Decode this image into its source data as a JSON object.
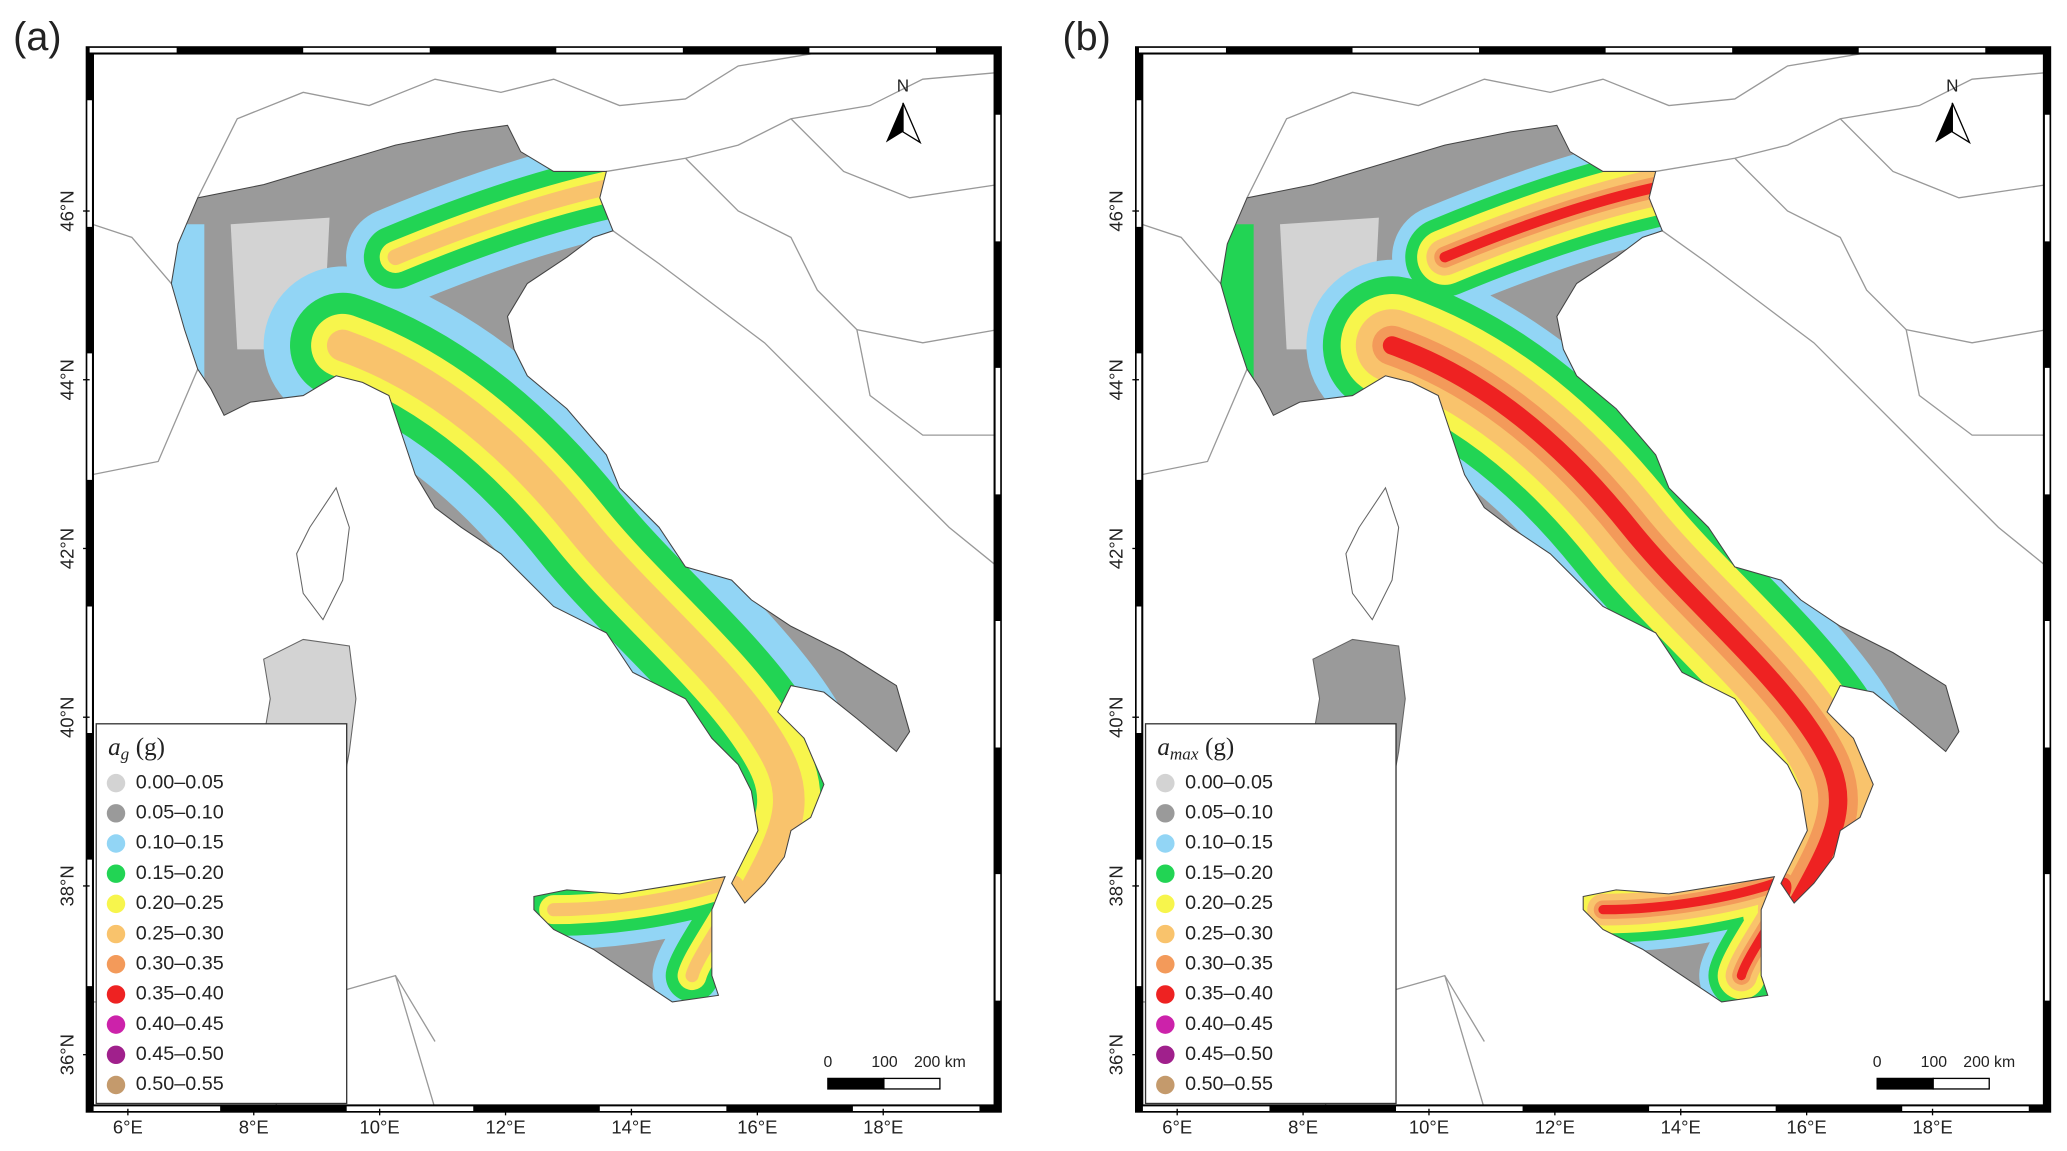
{
  "panels": [
    {
      "label": "(a)",
      "legend": {
        "title": {
          "symbol": "a",
          "subscript": "g",
          "unit": "(g)"
        },
        "items": [
          {
            "label": "0.00–0.05",
            "color": "#d3d3d3"
          },
          {
            "label": "0.05–0.10",
            "color": "#9a9a9a"
          },
          {
            "label": "0.10–0.15",
            "color": "#92d5f5"
          },
          {
            "label": "0.15–0.20",
            "color": "#22d454"
          },
          {
            "label": "0.20–0.25",
            "color": "#f7f54c"
          },
          {
            "label": "0.25–0.30",
            "color": "#f9c36c"
          },
          {
            "label": "0.30–0.35",
            "color": "#f39a5a"
          },
          {
            "label": "0.35–0.40",
            "color": "#ee2222"
          },
          {
            "label": "0.40–0.45",
            "color": "#cc22aa"
          },
          {
            "label": "0.45–0.50",
            "color": "#a0208c"
          },
          {
            "label": "0.50–0.55",
            "color": "#c49a6c"
          }
        ]
      }
    },
    {
      "label": "(b)",
      "legend": {
        "title": {
          "symbol": "a",
          "subscript": "max",
          "unit": "(g)"
        },
        "items": [
          {
            "label": "0.00–0.05",
            "color": "#d3d3d3"
          },
          {
            "label": "0.05–0.10",
            "color": "#9a9a9a"
          },
          {
            "label": "0.10–0.15",
            "color": "#92d5f5"
          },
          {
            "label": "0.15–0.20",
            "color": "#22d454"
          },
          {
            "label": "0.20–0.25",
            "color": "#f7f54c"
          },
          {
            "label": "0.25–0.30",
            "color": "#f9c36c"
          },
          {
            "label": "0.30–0.35",
            "color": "#f39a5a"
          },
          {
            "label": "0.35–0.40",
            "color": "#ee2222"
          },
          {
            "label": "0.40–0.45",
            "color": "#cc22aa"
          },
          {
            "label": "0.45–0.50",
            "color": "#a0208c"
          },
          {
            "label": "0.50–0.55",
            "color": "#c49a6c"
          }
        ]
      }
    }
  ],
  "lon_ticks": [
    {
      "value": 6,
      "label": "6°E"
    },
    {
      "value": 8,
      "label": "8°E"
    },
    {
      "value": 10,
      "label": "10°E"
    },
    {
      "value": 12,
      "label": "12°E"
    },
    {
      "value": 14,
      "label": "14°E"
    },
    {
      "value": 16,
      "label": "16°E"
    },
    {
      "value": 18,
      "label": "18°E"
    }
  ],
  "lat_ticks": [
    {
      "value": 36,
      "label": "36°N"
    },
    {
      "value": 38,
      "label": "38°N"
    },
    {
      "value": 40,
      "label": "40°N"
    },
    {
      "value": 42,
      "label": "42°N"
    },
    {
      "value": 44,
      "label": "44°N"
    },
    {
      "value": 46,
      "label": "46°N"
    }
  ],
  "north": "N",
  "scale_labels": [
    "0",
    "100",
    "200 km"
  ]
}
